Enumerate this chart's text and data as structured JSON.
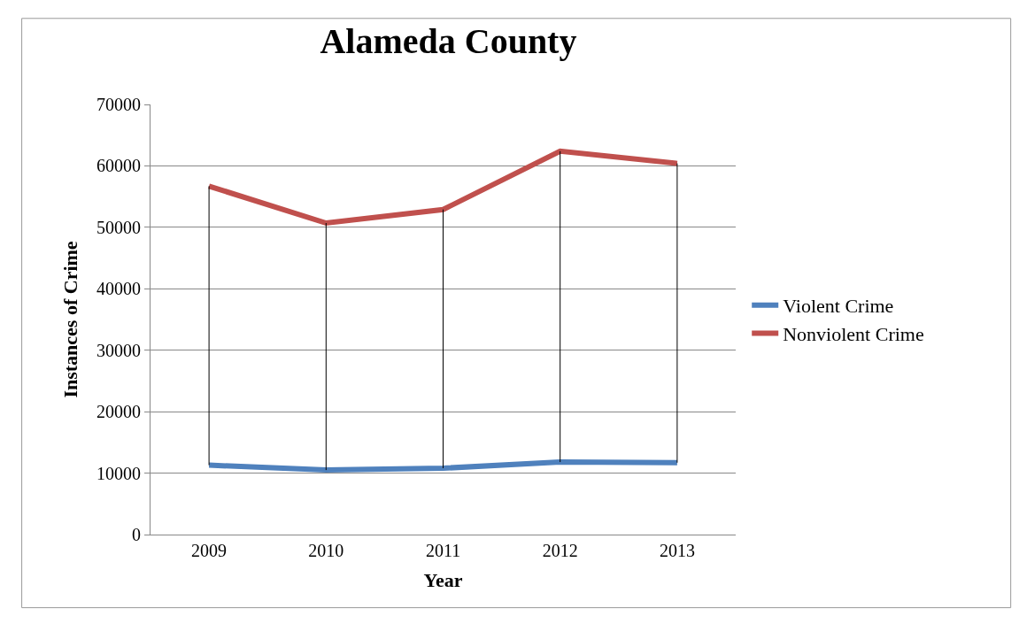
{
  "chart_data": {
    "type": "line",
    "title": "Alameda County",
    "xlabel": "Year",
    "ylabel": "Instances of Crime",
    "categories": [
      "2009",
      "2010",
      "2011",
      "2012",
      "2013"
    ],
    "series": [
      {
        "name": "Violent Crime",
        "color": "#4f81bd",
        "values": [
          11300,
          10500,
          10800,
          11800,
          11700
        ]
      },
      {
        "name": "Nonviolent Crime",
        "color": "#c0504d",
        "values": [
          56700,
          50700,
          52900,
          62400,
          60400
        ],
        "errors": [
          [
            11300,
            56700
          ],
          [
            10500,
            50700
          ],
          [
            10800,
            52900
          ],
          [
            11800,
            62400
          ],
          [
            11700,
            60400
          ]
        ]
      }
    ],
    "ylim": [
      0,
      70000
    ],
    "yticks": [
      0,
      10000,
      20000,
      30000,
      40000,
      50000,
      60000,
      70000
    ],
    "grid": "y",
    "legend": "right",
    "marker": "none",
    "line_style": "solid"
  }
}
